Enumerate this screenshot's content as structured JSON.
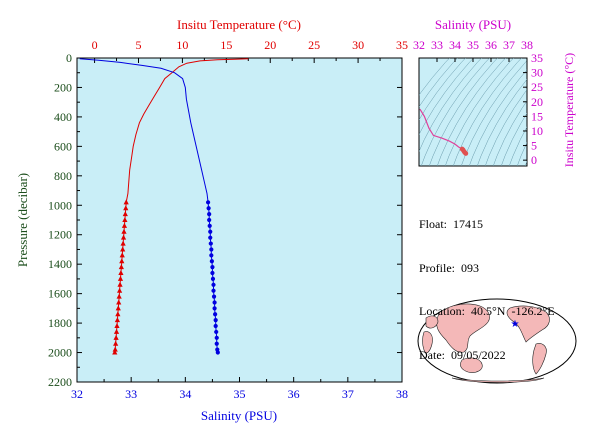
{
  "colors": {
    "plot_bg": "#c9eef7",
    "temperature": "#e00000",
    "salinity": "#0000e0",
    "salinity_axis": "#cc00cc",
    "ts_curve": "#e0409a",
    "pressure_axis": "#1b4d1b",
    "isopycnal": "#6699aa",
    "land": "#f4b8b8"
  },
  "chart_data": [
    {
      "type": "line",
      "title": "",
      "ylabel": "Pressure (decibar)",
      "ylim": [
        0,
        2200
      ],
      "y_ticks": [
        "0",
        "200",
        "400",
        "600",
        "800",
        "1000",
        "1200",
        "1400",
        "1600",
        "1800",
        "2000",
        "2200"
      ],
      "top_axis": {
        "label": "Insitu Temperature (°C)",
        "range": [
          -2,
          35
        ],
        "ticks": [
          "0",
          "5",
          "10",
          "15",
          "20",
          "25",
          "30",
          "35"
        ]
      },
      "bottom_axis": {
        "label": "Salinity (PSU)",
        "range": [
          32,
          38
        ],
        "ticks": [
          "32",
          "33",
          "34",
          "35",
          "36",
          "37",
          "38"
        ]
      },
      "series": [
        {
          "name": "",
          "variable": "temperature",
          "profile": [
            [
              17.5,
              5
            ],
            [
              16.0,
              8
            ],
            [
              14.0,
              12
            ],
            [
              12.0,
              20
            ],
            [
              10.5,
              35
            ],
            [
              9.6,
              60
            ],
            [
              8.8,
              100
            ],
            [
              8.0,
              140
            ],
            [
              7.4,
              200
            ],
            [
              6.8,
              260
            ],
            [
              6.2,
              320
            ],
            [
              5.6,
              380
            ],
            [
              5.1,
              440
            ],
            [
              4.7,
              520
            ],
            [
              4.4,
              600
            ],
            [
              4.2,
              680
            ],
            [
              4.0,
              760
            ],
            [
              3.9,
              840
            ],
            [
              3.8,
              920
            ]
          ],
          "markers": [
            [
              3.6,
              980
            ],
            [
              3.55,
              1020
            ],
            [
              3.5,
              1060
            ],
            [
              3.45,
              1100
            ],
            [
              3.4,
              1140
            ],
            [
              3.35,
              1180
            ],
            [
              3.3,
              1220
            ],
            [
              3.25,
              1260
            ],
            [
              3.2,
              1300
            ],
            [
              3.15,
              1340
            ],
            [
              3.1,
              1380
            ],
            [
              3.05,
              1420
            ],
            [
              3.0,
              1460
            ],
            [
              2.95,
              1500
            ],
            [
              2.9,
              1540
            ],
            [
              2.85,
              1580
            ],
            [
              2.8,
              1620
            ],
            [
              2.75,
              1660
            ],
            [
              2.7,
              1700
            ],
            [
              2.65,
              1740
            ],
            [
              2.6,
              1780
            ],
            [
              2.55,
              1820
            ],
            [
              2.5,
              1860
            ],
            [
              2.45,
              1900
            ],
            [
              2.4,
              1940
            ],
            [
              2.35,
              1980
            ],
            [
              2.3,
              2000
            ]
          ]
        },
        {
          "name": "",
          "variable": "salinity",
          "profile": [
            [
              32.05,
              5
            ],
            [
              32.4,
              15
            ],
            [
              32.8,
              30
            ],
            [
              33.2,
              50
            ],
            [
              33.55,
              70
            ],
            [
              33.8,
              100
            ],
            [
              33.95,
              140
            ],
            [
              34.0,
              200
            ],
            [
              34.02,
              280
            ],
            [
              34.06,
              360
            ],
            [
              34.1,
              440
            ],
            [
              34.15,
              520
            ],
            [
              34.2,
              600
            ],
            [
              34.25,
              680
            ],
            [
              34.3,
              760
            ],
            [
              34.35,
              840
            ],
            [
              34.4,
              920
            ]
          ],
          "markers": [
            [
              34.42,
              980
            ],
            [
              34.43,
              1020
            ],
            [
              34.44,
              1060
            ],
            [
              34.44,
              1100
            ],
            [
              34.45,
              1140
            ],
            [
              34.46,
              1180
            ],
            [
              34.46,
              1220
            ],
            [
              34.47,
              1260
            ],
            [
              34.48,
              1300
            ],
            [
              34.48,
              1340
            ],
            [
              34.49,
              1380
            ],
            [
              34.5,
              1420
            ],
            [
              34.5,
              1460
            ],
            [
              34.51,
              1500
            ],
            [
              34.52,
              1540
            ],
            [
              34.52,
              1580
            ],
            [
              34.53,
              1620
            ],
            [
              34.54,
              1660
            ],
            [
              34.54,
              1700
            ],
            [
              34.55,
              1740
            ],
            [
              34.56,
              1780
            ],
            [
              34.56,
              1820
            ],
            [
              34.57,
              1860
            ],
            [
              34.58,
              1900
            ],
            [
              34.58,
              1940
            ],
            [
              34.59,
              1980
            ],
            [
              34.6,
              2000
            ]
          ]
        }
      ]
    },
    {
      "type": "scatter",
      "title": "",
      "xlabel": "Salinity (PSU)",
      "ylabel": "Insitu Temperature (°C)",
      "xlim": [
        32,
        38
      ],
      "ylim": [
        -2,
        35
      ],
      "x_ticks": [
        "32",
        "33",
        "34",
        "35",
        "36",
        "37",
        "38"
      ],
      "y_ticks": [
        "0",
        "5",
        "10",
        "15",
        "20",
        "25",
        "30",
        "35"
      ],
      "series": [
        {
          "name": "",
          "points": [
            [
              32.05,
              17.5
            ],
            [
              32.3,
              15
            ],
            [
              32.55,
              11
            ],
            [
              32.8,
              8.5
            ],
            [
              33.3,
              7.5
            ],
            [
              33.7,
              6.5
            ],
            [
              34.0,
              5.5
            ],
            [
              34.2,
              4.5
            ],
            [
              34.35,
              4.0
            ],
            [
              34.4,
              3.8
            ],
            [
              34.45,
              3.5
            ],
            [
              34.5,
              3.0
            ],
            [
              34.55,
              2.6
            ],
            [
              34.6,
              2.3
            ]
          ]
        }
      ]
    }
  ],
  "info": {
    "float_label": "Float:",
    "float_value": "17415",
    "profile_label": "Profile:",
    "profile_value": "093",
    "location_label": "Location:",
    "location_value": "40.5°N  -126.2°E",
    "date_label": "Date:",
    "date_value": "09/05/2022"
  }
}
